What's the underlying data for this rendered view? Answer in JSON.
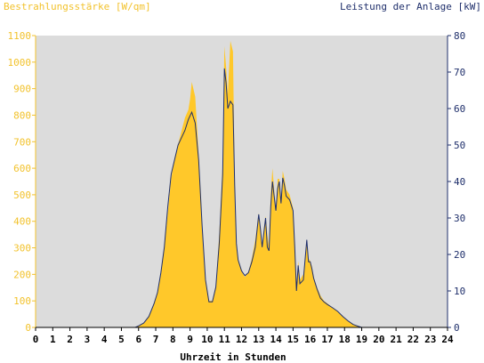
{
  "chart_data": {
    "type": "area",
    "left_axis_title": "Bestrahlungsstärke [W/qm]",
    "right_axis_title": "Leistung der Anlage [kW]",
    "xlabel": "Uhrzeit in Stunden",
    "x_ticks": [
      "0",
      "1",
      "2",
      "3",
      "4",
      "5",
      "6",
      "7",
      "8",
      "9",
      "10",
      "11",
      "12",
      "13",
      "14",
      "15",
      "16",
      "17",
      "18",
      "19",
      "20",
      "21",
      "22",
      "23",
      "24"
    ],
    "y_left_ticks": [
      "0",
      "100",
      "200",
      "300",
      "400",
      "500",
      "600",
      "700",
      "800",
      "900",
      "1000",
      "1100"
    ],
    "y_right_ticks": [
      "0",
      "10",
      "20",
      "30",
      "40",
      "50",
      "60",
      "70",
      "80"
    ],
    "xlim": [
      0,
      24
    ],
    "ylim_left": [
      0,
      1100
    ],
    "ylim_right": [
      0,
      80
    ],
    "grid": false,
    "colors": {
      "plot_bg": "#dcdcdc",
      "irradiance_fill": "#ffc82a",
      "power_line": "#1f2f6b",
      "left_axis": "#f2c22c",
      "right_axis": "#1f2f6b",
      "page_bg": "#ffffff"
    },
    "series": [
      {
        "name": "Bestrahlungsstärke [W/qm]",
        "axis": "left",
        "style": "filled-area",
        "x": [
          0,
          5.8,
          6.0,
          6.3,
          6.6,
          6.9,
          7.1,
          7.3,
          7.5,
          7.7,
          7.9,
          8.1,
          8.3,
          8.5,
          8.7,
          8.9,
          9.0,
          9.1,
          9.3,
          9.5,
          9.7,
          9.9,
          10.1,
          10.3,
          10.5,
          10.7,
          10.9,
          11.0,
          11.1,
          11.2,
          11.35,
          11.5,
          11.6,
          11.7,
          11.8,
          11.9,
          12.0,
          12.1,
          12.2,
          12.4,
          12.6,
          12.8,
          13.0,
          13.1,
          13.2,
          13.3,
          13.4,
          13.5,
          13.6,
          13.7,
          13.8,
          13.9,
          14.0,
          14.1,
          14.2,
          14.3,
          14.4,
          14.5,
          14.6,
          14.8,
          15.0,
          15.1,
          15.2,
          15.3,
          15.4,
          15.6,
          15.8,
          15.9,
          16.0,
          16.1,
          16.2,
          16.4,
          16.6,
          16.8,
          17.0,
          17.3,
          17.6,
          17.9,
          18.2,
          18.5,
          18.8,
          19.0,
          19.2,
          24
        ],
        "y": [
          0,
          0,
          5,
          15,
          40,
          90,
          130,
          200,
          300,
          430,
          560,
          640,
          690,
          740,
          790,
          820,
          860,
          925,
          870,
          650,
          380,
          180,
          100,
          100,
          160,
          350,
          620,
          1060,
          980,
          880,
          1080,
          1040,
          560,
          320,
          250,
          230,
          210,
          200,
          190,
          210,
          260,
          330,
          430,
          380,
          300,
          370,
          420,
          350,
          300,
          500,
          600,
          520,
          430,
          560,
          560,
          480,
          590,
          560,
          520,
          500,
          450,
          300,
          150,
          250,
          180,
          200,
          330,
          260,
          250,
          230,
          190,
          150,
          120,
          100,
          90,
          75,
          60,
          40,
          25,
          12,
          5,
          0,
          0,
          0
        ],
        "values_note_unit": "W/qm"
      },
      {
        "name": "Leistung der Anlage [kW]",
        "axis": "right",
        "style": "line",
        "x": [
          0,
          5.8,
          6.0,
          6.3,
          6.6,
          6.9,
          7.1,
          7.3,
          7.5,
          7.7,
          7.9,
          8.1,
          8.3,
          8.5,
          8.7,
          8.9,
          9.0,
          9.1,
          9.3,
          9.5,
          9.7,
          9.9,
          10.1,
          10.3,
          10.5,
          10.7,
          10.9,
          11.0,
          11.1,
          11.2,
          11.35,
          11.5,
          11.6,
          11.7,
          11.8,
          11.9,
          12.0,
          12.1,
          12.2,
          12.4,
          12.6,
          12.8,
          13.0,
          13.1,
          13.2,
          13.3,
          13.4,
          13.5,
          13.6,
          13.7,
          13.8,
          13.9,
          14.0,
          14.1,
          14.2,
          14.3,
          14.4,
          14.5,
          14.6,
          14.8,
          15.0,
          15.1,
          15.2,
          15.3,
          15.4,
          15.6,
          15.8,
          15.9,
          16.0,
          16.1,
          16.2,
          16.4,
          16.6,
          16.8,
          17.0,
          17.3,
          17.6,
          17.9,
          18.2,
          18.5,
          18.8,
          19.0,
          19.2,
          24
        ],
        "y": [
          0,
          0,
          0.4,
          1.2,
          3,
          6.5,
          9.5,
          15,
          22,
          33,
          42,
          46,
          50,
          52,
          54,
          57,
          58,
          59,
          56,
          46,
          28,
          13,
          7,
          7,
          11,
          23,
          42,
          71,
          67,
          60,
          62,
          61,
          39,
          23,
          18.5,
          17,
          15.5,
          14.8,
          14.2,
          15,
          18,
          22,
          31,
          27,
          22,
          26,
          30,
          22,
          21,
          33,
          40,
          36,
          32,
          38,
          40,
          34,
          41,
          39,
          36,
          35,
          32,
          22,
          10,
          17,
          12,
          13,
          24,
          18,
          18,
          16,
          13.5,
          10.5,
          8,
          7,
          6.3,
          5.4,
          4.4,
          3,
          1.8,
          0.8,
          0.3,
          0,
          0,
          0
        ],
        "values_note_unit": "kW"
      }
    ]
  }
}
